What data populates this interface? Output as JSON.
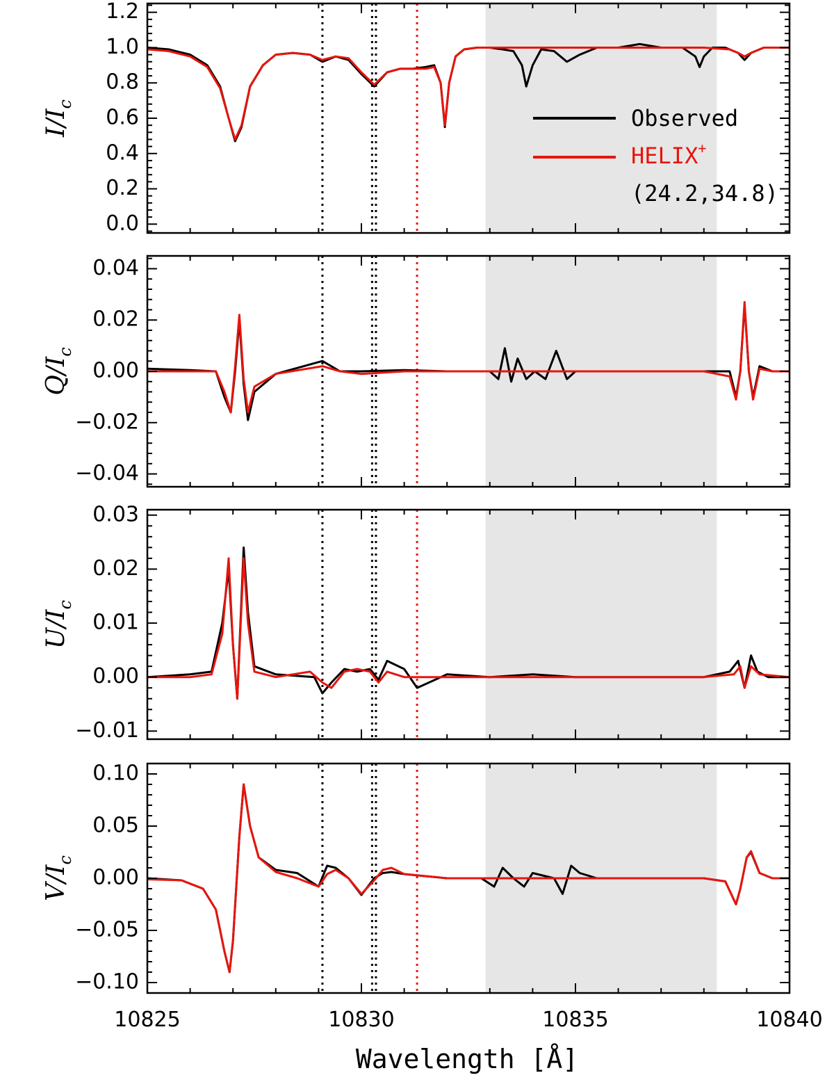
{
  "chart_data": {
    "type": "line",
    "xlabel": "Wavelength [Å]",
    "xlim": [
      10825,
      10840
    ],
    "x_ticks": [
      10825,
      10830,
      10835,
      10840
    ],
    "x_tick_labels": [
      "10825",
      "10830",
      "10835",
      "10840"
    ],
    "shaded_region": {
      "x": [
        10832.9,
        10838.3
      ],
      "color": "#e6e6e6"
    },
    "reference_lines": [
      {
        "x": 10829.09,
        "color": "#000000"
      },
      {
        "x": 10830.25,
        "color": "#000000"
      },
      {
        "x": 10830.34,
        "color": "#000000"
      },
      {
        "x": 10831.3,
        "color": "#e8150d"
      }
    ],
    "series_styles": {
      "observed": "#000000",
      "fit": "#e8150d"
    },
    "legend": {
      "placement": "top-right (panel 1)",
      "entries": [
        {
          "label": "Observed",
          "color": "#000000"
        },
        {
          "label": "HELIX",
          "superscript": "+",
          "color": "#e8150d"
        }
      ],
      "annotation": "(24.2,34.8)"
    },
    "panels": [
      {
        "id": "I",
        "ylabel_main": "I/I",
        "ylabel_sub": "c",
        "ylim": [
          -0.05,
          1.25
        ],
        "yticks": [
          0.0,
          0.2,
          0.4,
          0.6,
          0.8,
          1.0,
          1.2
        ],
        "ytick_labels": [
          "0.0",
          "0.2",
          "0.4",
          "0.6",
          "0.8",
          "1.0",
          "1.2"
        ],
        "observed": {
          "x": [
            10825,
            10825.5,
            10826,
            10826.4,
            10826.7,
            10826.9,
            10827.05,
            10827.2,
            10827.4,
            10827.7,
            10828,
            10828.4,
            10828.8,
            10829.09,
            10829.4,
            10829.7,
            10830,
            10830.3,
            10830.6,
            10830.9,
            10831.2,
            10831.5,
            10831.7,
            10831.85,
            10831.95,
            10832.05,
            10832.2,
            10832.4,
            10832.7,
            10833,
            10833.3,
            10833.55,
            10833.75,
            10833.85,
            10834,
            10834.2,
            10834.5,
            10834.8,
            10835.1,
            10835.5,
            10836,
            10836.5,
            10837,
            10837.5,
            10837.8,
            10837.9,
            10838,
            10838.2,
            10838.5,
            10838.8,
            10838.95,
            10839.1,
            10839.4,
            10839.8,
            10840
          ],
          "y": [
            1.0,
            0.99,
            0.96,
            0.9,
            0.78,
            0.6,
            0.47,
            0.55,
            0.78,
            0.9,
            0.96,
            0.97,
            0.96,
            0.92,
            0.95,
            0.93,
            0.85,
            0.78,
            0.86,
            0.88,
            0.88,
            0.89,
            0.9,
            0.8,
            0.55,
            0.8,
            0.95,
            0.99,
            1.0,
            1.0,
            0.99,
            0.98,
            0.9,
            0.78,
            0.9,
            0.99,
            0.98,
            0.92,
            0.96,
            1.0,
            1.0,
            1.02,
            1.0,
            1.0,
            0.95,
            0.89,
            0.95,
            1.0,
            1.0,
            0.97,
            0.93,
            0.97,
            1.0,
            1.0,
            1.0
          ]
        },
        "fit": {
          "x": [
            10825,
            10825.5,
            10826,
            10826.4,
            10826.7,
            10826.9,
            10827.05,
            10827.2,
            10827.4,
            10827.7,
            10828,
            10828.4,
            10828.8,
            10829.09,
            10829.4,
            10829.7,
            10830,
            10830.3,
            10830.6,
            10830.9,
            10831.2,
            10831.5,
            10831.7,
            10831.85,
            10831.95,
            10832.05,
            10832.2,
            10832.4,
            10832.7,
            10833,
            10834,
            10835,
            10836,
            10837,
            10838,
            10838.6,
            10838.8,
            10838.95,
            10839.1,
            10839.4,
            10840
          ],
          "y": [
            0.99,
            0.98,
            0.95,
            0.89,
            0.77,
            0.6,
            0.48,
            0.56,
            0.78,
            0.9,
            0.96,
            0.97,
            0.96,
            0.93,
            0.95,
            0.94,
            0.86,
            0.79,
            0.86,
            0.88,
            0.88,
            0.88,
            0.89,
            0.8,
            0.56,
            0.8,
            0.95,
            0.99,
            1.0,
            1.0,
            1.0,
            1.0,
            1.0,
            1.0,
            1.0,
            0.99,
            0.97,
            0.95,
            0.97,
            1.0,
            1.0
          ]
        }
      },
      {
        "id": "Q",
        "ylabel_main": "Q/I",
        "ylabel_sub": "c",
        "ylim": [
          -0.045,
          0.045
        ],
        "yticks": [
          -0.04,
          -0.02,
          0.0,
          0.02,
          0.04
        ],
        "ytick_labels": [
          "−0.04",
          "−0.02",
          "0.00",
          "0.02",
          "0.04"
        ],
        "observed": {
          "x": [
            10825,
            10826,
            10826.6,
            10826.8,
            10826.95,
            10827.05,
            10827.15,
            10827.25,
            10827.35,
            10827.5,
            10828,
            10829.09,
            10829.5,
            10830,
            10831,
            10832,
            10833,
            10833.2,
            10833.35,
            10833.5,
            10833.65,
            10833.85,
            10834.05,
            10834.3,
            10834.55,
            10834.8,
            10835.0,
            10835.3,
            10836,
            10837,
            10838,
            10838.6,
            10838.75,
            10838.85,
            10838.95,
            10839.05,
            10839.15,
            10839.3,
            10839.6,
            10840
          ],
          "y": [
            0.001,
            0.0005,
            0.0,
            -0.01,
            -0.016,
            0.0,
            0.02,
            -0.005,
            -0.019,
            -0.008,
            -0.001,
            0.004,
            0.0,
            0.0,
            0.0005,
            0.0,
            0.0,
            -0.003,
            0.009,
            -0.004,
            0.005,
            -0.003,
            0.0,
            -0.003,
            0.008,
            -0.003,
            0.0,
            0.0,
            0.0,
            0.0,
            0.0,
            0.0,
            -0.01,
            0.0,
            0.026,
            0.0,
            -0.01,
            0.002,
            0.0,
            0.0
          ]
        },
        "fit": {
          "x": [
            10825,
            10826,
            10826.6,
            10826.8,
            10826.95,
            10827.05,
            10827.15,
            10827.25,
            10827.35,
            10827.5,
            10828,
            10829.09,
            10829.5,
            10830,
            10831,
            10832,
            10834,
            10836,
            10838,
            10838.6,
            10838.75,
            10838.85,
            10838.95,
            10839.05,
            10839.15,
            10839.3,
            10839.6,
            10840
          ],
          "y": [
            0.0,
            0.0,
            0.0,
            -0.008,
            -0.016,
            0.002,
            0.022,
            -0.003,
            -0.016,
            -0.006,
            -0.001,
            0.002,
            0.0,
            -0.001,
            0.0,
            0.0,
            0.0,
            0.0,
            0.0,
            -0.002,
            -0.011,
            0.0,
            0.027,
            0.0,
            -0.011,
            0.001,
            0.0,
            0.0
          ]
        }
      },
      {
        "id": "U",
        "ylabel_main": "U/I",
        "ylabel_sub": "c",
        "ylim": [
          -0.0115,
          0.031
        ],
        "yticks": [
          -0.01,
          0.0,
          0.01,
          0.02,
          0.03
        ],
        "ytick_labels": [
          "−0.01",
          "0.00",
          "0.01",
          "0.02",
          "0.03"
        ],
        "observed": {
          "x": [
            10825,
            10826,
            10826.5,
            10826.75,
            10826.9,
            10827.0,
            10827.1,
            10827.25,
            10827.35,
            10827.5,
            10828,
            10828.9,
            10829.09,
            10829.3,
            10829.6,
            10829.9,
            10830.2,
            10830.4,
            10830.6,
            10831,
            10831.3,
            10832,
            10833,
            10834,
            10835,
            10836,
            10837,
            10838,
            10838.6,
            10838.8,
            10838.95,
            10839.1,
            10839.25,
            10839.5,
            10840
          ],
          "y": [
            0.0,
            0.0005,
            0.001,
            0.01,
            0.02,
            0.006,
            -0.004,
            0.024,
            0.012,
            0.002,
            0.0005,
            0.0,
            -0.003,
            -0.001,
            0.0015,
            0.001,
            0.0015,
            -0.0005,
            0.003,
            0.0015,
            -0.002,
            0.0005,
            0.0,
            0.0005,
            0.0,
            0.0,
            0.0,
            0.0,
            0.001,
            0.003,
            -0.002,
            0.004,
            0.001,
            0.0,
            0.0
          ]
        },
        "fit": {
          "x": [
            10825,
            10826,
            10826.5,
            10826.75,
            10826.9,
            10827.0,
            10827.1,
            10827.25,
            10827.35,
            10827.5,
            10828,
            10828.8,
            10829.09,
            10829.3,
            10829.6,
            10829.9,
            10830.2,
            10830.4,
            10830.6,
            10831,
            10832,
            10834,
            10836,
            10838,
            10838.7,
            10838.85,
            10838.95,
            10839.1,
            10839.3,
            10840
          ],
          "y": [
            0.0,
            0.0,
            0.0005,
            0.008,
            0.022,
            0.006,
            -0.004,
            0.022,
            0.01,
            0.001,
            0.0,
            0.001,
            -0.001,
            -0.002,
            0.001,
            0.0015,
            0.001,
            -0.001,
            0.001,
            0.0,
            0.0,
            0.0,
            0.0,
            0.0,
            0.0005,
            0.002,
            -0.002,
            0.002,
            0.0005,
            0.0
          ]
        }
      },
      {
        "id": "V",
        "ylabel_main": "V/I",
        "ylabel_sub": "c",
        "ylim": [
          -0.11,
          0.11
        ],
        "yticks": [
          -0.1,
          -0.05,
          0.0,
          0.05,
          0.1
        ],
        "ytick_labels": [
          "−0.10",
          "−0.05",
          "0.00",
          "0.05",
          "0.10"
        ],
        "observed": {
          "x": [
            10825,
            10825.8,
            10826.3,
            10826.6,
            10826.8,
            10826.92,
            10827.0,
            10827.15,
            10827.25,
            10827.4,
            10827.6,
            10828,
            10828.5,
            10829.0,
            10829.2,
            10829.4,
            10829.7,
            10830.0,
            10830.3,
            10830.5,
            10830.7,
            10831,
            10831.5,
            10832,
            10832.8,
            10833.1,
            10833.3,
            10833.55,
            10833.8,
            10834,
            10834.5,
            10834.7,
            10834.9,
            10835.1,
            10835.5,
            10836,
            10837,
            10838,
            10838.5,
            10838.75,
            10838.85,
            10839.0,
            10839.1,
            10839.3,
            10839.6,
            10840
          ],
          "y": [
            0.0,
            -0.002,
            -0.01,
            -0.03,
            -0.07,
            -0.09,
            -0.06,
            0.04,
            0.09,
            0.05,
            0.02,
            0.008,
            0.005,
            -0.008,
            0.012,
            0.01,
            0.0,
            -0.016,
            0.0,
            0.005,
            0.006,
            0.004,
            0.002,
            0.0,
            0.0,
            -0.008,
            0.01,
            0.0,
            -0.008,
            0.005,
            0.0,
            -0.015,
            0.012,
            0.005,
            0.0,
            0.0,
            0.0,
            0.0,
            -0.003,
            -0.025,
            -0.01,
            0.02,
            0.025,
            0.005,
            0.0,
            0.0
          ]
        },
        "fit": {
          "x": [
            10825,
            10825.8,
            10826.3,
            10826.6,
            10826.8,
            10826.92,
            10827.0,
            10827.15,
            10827.25,
            10827.4,
            10827.6,
            10828,
            10828.5,
            10829.0,
            10829.2,
            10829.4,
            10829.7,
            10830.0,
            10830.3,
            10830.5,
            10830.7,
            10831,
            10831.5,
            10832,
            10834,
            10836,
            10838,
            10838.5,
            10838.75,
            10838.85,
            10839.0,
            10839.1,
            10839.3,
            10839.6,
            10840
          ],
          "y": [
            -0.001,
            -0.002,
            -0.01,
            -0.03,
            -0.07,
            -0.09,
            -0.06,
            0.04,
            0.09,
            0.05,
            0.02,
            0.006,
            0.0,
            -0.008,
            0.004,
            0.008,
            0.0,
            -0.015,
            -0.002,
            0.008,
            0.01,
            0.004,
            0.002,
            0.0,
            0.0,
            0.0,
            0.0,
            -0.003,
            -0.025,
            -0.01,
            0.02,
            0.026,
            0.005,
            0.0,
            0.0
          ]
        }
      }
    ]
  }
}
